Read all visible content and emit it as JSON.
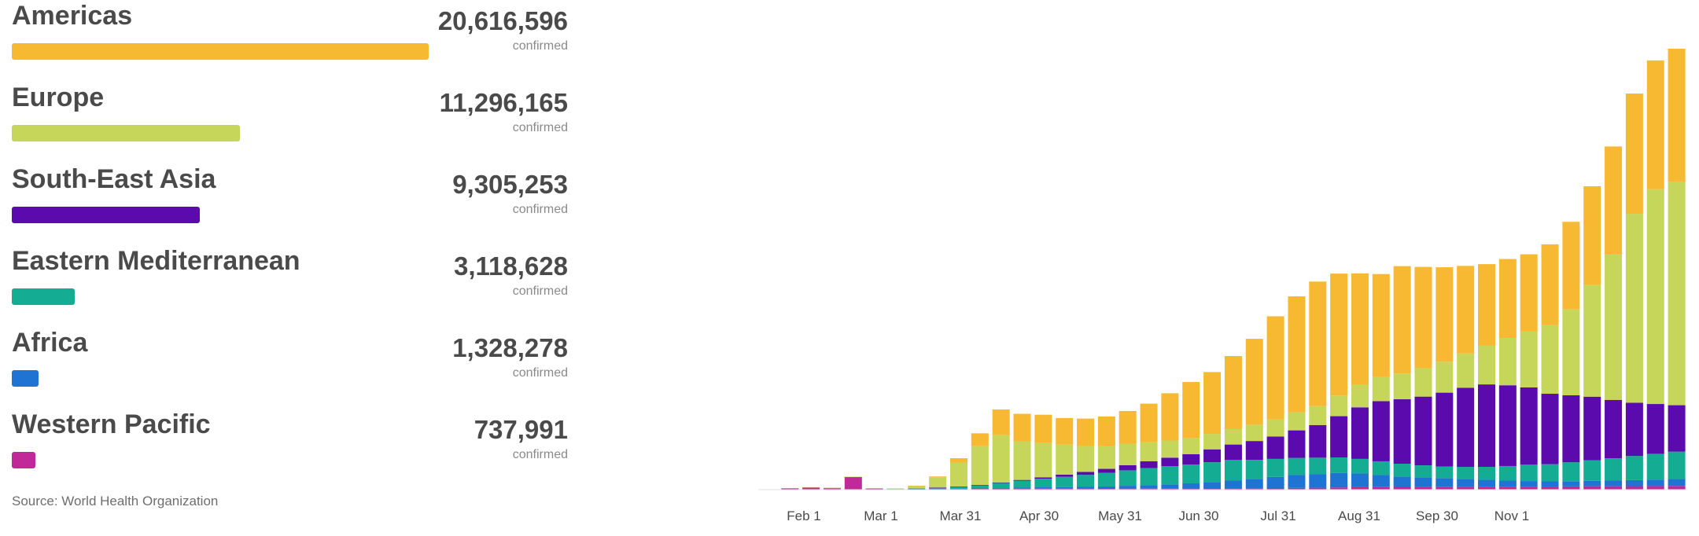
{
  "regions": [
    {
      "name": "Americas",
      "value": "20,616,596",
      "unit": "confirmed",
      "color": "#f8b932",
      "share": 1.0
    },
    {
      "name": "Europe",
      "value": "11,296,165",
      "unit": "confirmed",
      "color": "#c5d65a",
      "share": 0.548
    },
    {
      "name": "South-East Asia",
      "value": "9,305,253",
      "unit": "confirmed",
      "color": "#5b0aad",
      "share": 0.451
    },
    {
      "name": "Eastern Mediterranean",
      "value": "3,118,628",
      "unit": "confirmed",
      "color": "#14ad94",
      "share": 0.151
    },
    {
      "name": "Africa",
      "value": "1,328,278",
      "unit": "confirmed",
      "color": "#1f73d2",
      "share": 0.064
    },
    {
      "name": "Western Pacific",
      "value": "737,991",
      "unit": "confirmed",
      "color": "#c12898",
      "share": 0.036
    }
  ],
  "source": "Source: World Health Organization",
  "chart_data": {
    "type": "bar",
    "stacked": true,
    "x_tick_labels": [
      "Feb 1",
      "Mar 1",
      "Mar 31",
      "Apr 30",
      "May 31",
      "Jun 30",
      "Jul 31",
      "Aug 31",
      "Sep 30",
      "Nov 1"
    ],
    "x": [
      "Jan 21",
      "Jan 28",
      "Feb 4",
      "Feb 11",
      "Feb 13",
      "Feb 18",
      "Feb 25",
      "Mar 3",
      "Mar 10",
      "Mar 17",
      "Mar 24",
      "Mar 31",
      "Apr 7",
      "Apr 14",
      "Apr 21",
      "Apr 28",
      "May 5",
      "May 12",
      "May 19",
      "May 26",
      "Jun 2",
      "Jun 9",
      "Jun 16",
      "Jun 23",
      "Jun 30",
      "Jul 7",
      "Jul 14",
      "Jul 21",
      "Jul 28",
      "Aug 4",
      "Aug 11",
      "Aug 18",
      "Aug 25",
      "Sep 1",
      "Sep 8",
      "Sep 15",
      "Sep 22",
      "Sep 29",
      "Oct 6",
      "Oct 13",
      "Oct 20",
      "Oct 27",
      "Nov 3",
      "Nov 10"
    ],
    "series": [
      {
        "name": "Western Pacific",
        "color": "#c12898",
        "values": [
          100,
          1800,
          2800,
          2000,
          15000,
          1500,
          700,
          900,
          800,
          800,
          900,
          1000,
          1100,
          1200,
          1100,
          1000,
          900,
          1000,
          1100,
          1200,
          1300,
          1400,
          1500,
          1600,
          1800,
          2000,
          2200,
          2500,
          2800,
          3000,
          3200,
          3300,
          3400,
          3500,
          3500,
          3500,
          3500,
          3600,
          3800,
          4000,
          4000,
          4100,
          4200,
          4300
        ]
      },
      {
        "name": "Africa",
        "color": "#1f73d2",
        "values": [
          0,
          0,
          0,
          0,
          0,
          0,
          0,
          10,
          50,
          200,
          500,
          800,
          1200,
          1500,
          1800,
          2200,
          2800,
          3500,
          4000,
          5000,
          6000,
          7500,
          9000,
          11000,
          13000,
          15000,
          16000,
          17000,
          16000,
          14000,
          12000,
          11000,
          10000,
          9000,
          8000,
          7000,
          6500,
          6000,
          6000,
          6200,
          6500,
          7000,
          7500,
          8000
        ]
      },
      {
        "name": "Eastern Mediterranean",
        "color": "#14ad94",
        "values": [
          0,
          0,
          0,
          0,
          0,
          0,
          100,
          500,
          1500,
          2500,
          4000,
          6000,
          8000,
          10000,
          12000,
          14000,
          16000,
          18000,
          20000,
          21000,
          22000,
          23000,
          24000,
          22000,
          21000,
          20000,
          19000,
          18000,
          17000,
          16000,
          15000,
          14000,
          13500,
          14000,
          15000,
          17000,
          19000,
          20000,
          22000,
          24000,
          26000,
          28000,
          30000,
          32000
        ]
      },
      {
        "name": "South-East Asia",
        "color": "#5b0aad",
        "values": [
          0,
          0,
          0,
          0,
          0,
          0,
          0,
          0,
          10,
          50,
          200,
          500,
          1000,
          1500,
          2500,
          3500,
          4500,
          6000,
          8000,
          10000,
          12000,
          15000,
          18000,
          22000,
          26000,
          32000,
          38000,
          48000,
          60000,
          70000,
          75000,
          80000,
          86000,
          92000,
          96000,
          94000,
          90000,
          82000,
          78000,
          74000,
          68000,
          62000,
          58000,
          54000
        ]
      },
      {
        "name": "Europe",
        "color": "#c5d65a",
        "values": [
          0,
          5,
          20,
          50,
          100,
          150,
          500,
          3000,
          12000,
          28000,
          45000,
          55000,
          45000,
          40000,
          35000,
          30000,
          27000,
          25000,
          22000,
          20000,
          19000,
          18000,
          18000,
          19000,
          20000,
          21000,
          22000,
          24000,
          26000,
          28000,
          30000,
          33000,
          36000,
          40000,
          45000,
          55000,
          65000,
          80000,
          100000,
          130000,
          170000,
          220000,
          250000,
          260000
        ]
      },
      {
        "name": "Americas",
        "color": "#f8b932",
        "values": [
          0,
          0,
          0,
          0,
          0,
          0,
          10,
          100,
          1000,
          5000,
          15000,
          30000,
          32000,
          33000,
          31000,
          32000,
          34000,
          38000,
          45000,
          55000,
          65000,
          72000,
          85000,
          100000,
          120000,
          135000,
          145000,
          142000,
          130000,
          120000,
          125000,
          118000,
          110000,
          102000,
          95000,
          92000,
          90000,
          94000,
          102000,
          115000,
          125000,
          140000,
          150000,
          155000
        ]
      }
    ]
  }
}
